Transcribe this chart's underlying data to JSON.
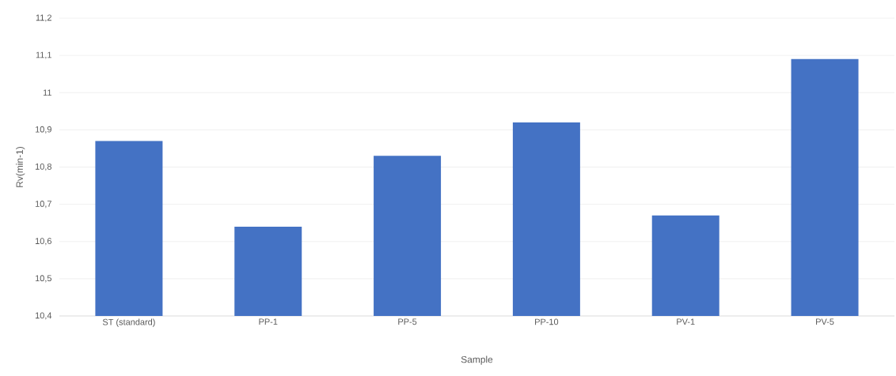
{
  "chart_data": {
    "type": "bar",
    "xlabel": "Sample",
    "ylabel": "Rv(min-1)",
    "categories": [
      "ST (standard)",
      "PP-1",
      "PP-5",
      "PP-10",
      "PV-1",
      "PV-5"
    ],
    "values": [
      10.87,
      10.64,
      10.83,
      10.92,
      10.67,
      11.09
    ],
    "color": "#4472c4",
    "ylim": [
      10.4,
      11.2
    ],
    "yticks": [
      {
        "value": 10.4,
        "label": "10,4"
      },
      {
        "value": 10.5,
        "label": "10,5"
      },
      {
        "value": 10.6,
        "label": "10,6"
      },
      {
        "value": 10.7,
        "label": "10,7"
      },
      {
        "value": 10.8,
        "label": "10,8"
      },
      {
        "value": 10.9,
        "label": "10,9"
      },
      {
        "value": 11,
        "label": "11"
      },
      {
        "value": 11.1,
        "label": "11,1"
      },
      {
        "value": 11.2,
        "label": "11,2"
      }
    ],
    "grid": "y"
  }
}
